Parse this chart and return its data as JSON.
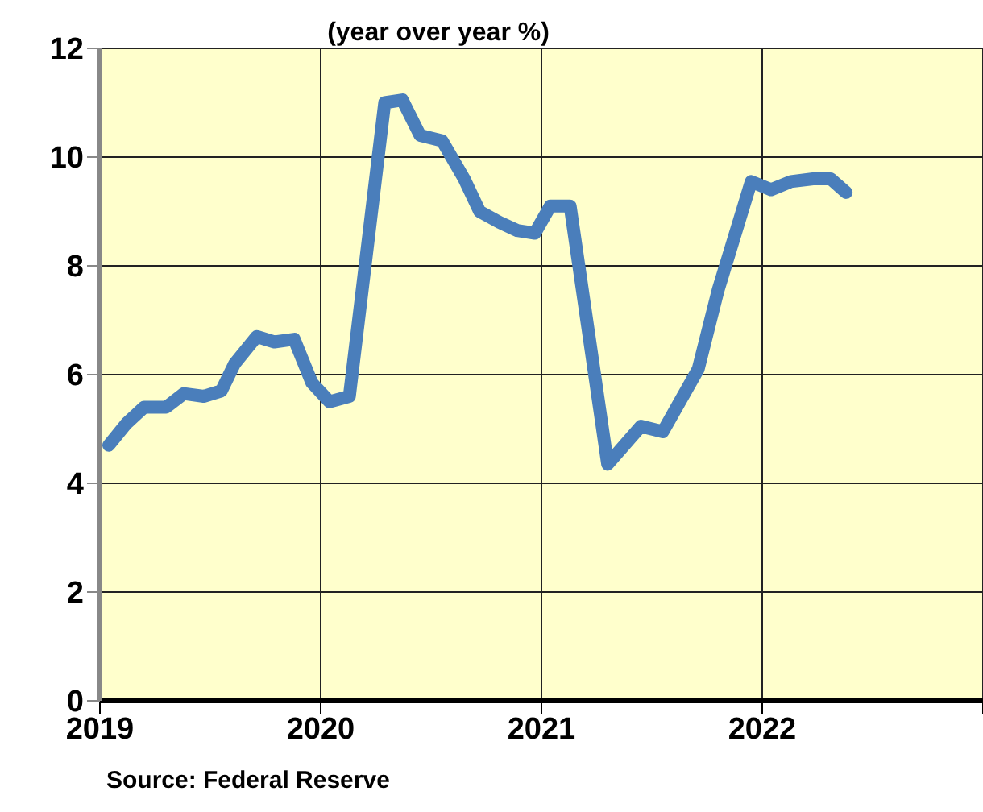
{
  "chart_data": {
    "type": "line",
    "title": "(year over year %)",
    "annotations": [
      "Source: Federal Reserve"
    ],
    "x": [
      2019.04,
      2019.12,
      2019.2,
      2019.3,
      2019.38,
      2019.47,
      2019.55,
      2019.61,
      2019.71,
      2019.79,
      2019.88,
      2019.96,
      2020.04,
      2020.13,
      2020.29,
      2020.37,
      2020.45,
      2020.55,
      2020.65,
      2020.72,
      2020.81,
      2020.89,
      2020.97,
      2021.04,
      2021.13,
      2021.3,
      2021.45,
      2021.55,
      2021.71,
      2021.8,
      2021.95,
      2022.04,
      2022.13,
      2022.23,
      2022.31,
      2022.38
    ],
    "series": [
      {
        "color": "#4a7ebb",
        "values": [
          4.7,
          5.1,
          5.4,
          5.4,
          5.65,
          5.6,
          5.7,
          6.2,
          6.7,
          6.6,
          6.65,
          5.85,
          5.5,
          5.6,
          11.0,
          11.05,
          10.4,
          10.3,
          9.6,
          9.0,
          8.8,
          8.65,
          8.6,
          9.1,
          9.1,
          4.35,
          5.05,
          4.95,
          6.1,
          7.55,
          9.55,
          9.4,
          9.55,
          9.6,
          9.6,
          9.35
        ]
      }
    ],
    "xlim": [
      2019,
      2023
    ],
    "xticks": [
      2019,
      2020,
      2021,
      2022,
      {
        "value": 2023,
        "label": null
      }
    ],
    "ylim": [
      0,
      12
    ],
    "yticks": [
      0,
      2,
      4,
      6,
      8,
      10,
      12
    ],
    "grid": true,
    "marker": "none",
    "line_style": "solid"
  }
}
